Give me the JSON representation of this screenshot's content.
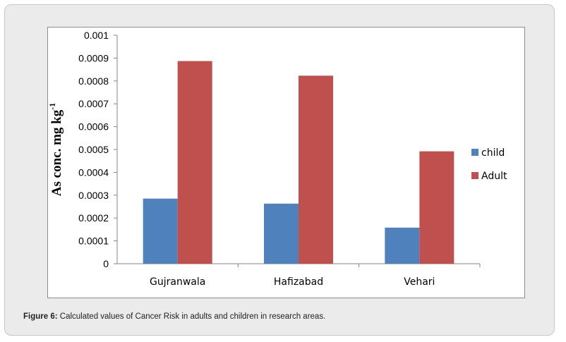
{
  "chart_data": {
    "type": "bar",
    "categories": [
      "Gujranwala",
      "Hafizabad",
      "Vehari"
    ],
    "series": [
      {
        "name": "child",
        "values": [
          0.000285,
          0.000263,
          0.000158
        ],
        "color": "#4f81bd"
      },
      {
        "name": "Adult",
        "values": [
          0.000887,
          0.000823,
          0.000492
        ],
        "color": "#c0504d"
      }
    ],
    "ylim": [
      0,
      0.001
    ],
    "yticks": [
      "0",
      "0.0001",
      "0.0002",
      "0.0003",
      "0.0004",
      "0.0005",
      "0.0006",
      "0.0007",
      "0.0008",
      "0.0009",
      "0.001"
    ],
    "ylabel_main": "As conc. mg kg",
    "ylabel_sup": "-1",
    "xlabel": "",
    "legend_position": "right",
    "grid": false
  },
  "caption": {
    "label": "Figure 6:",
    "text": " Calculated values of Cancer Risk in adults and children in research areas."
  }
}
